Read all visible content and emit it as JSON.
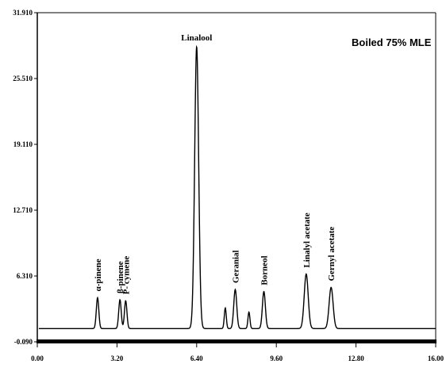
{
  "chart_data": {
    "type": "line",
    "title": "Boiled 75% MLE",
    "xlabel": "",
    "ylabel": "",
    "xlim": [
      0,
      16
    ],
    "ylim": [
      -0.09,
      31.91
    ],
    "x_ticks": [
      0,
      3.2,
      6.4,
      9.6,
      12.8,
      16
    ],
    "x_tick_labels": [
      "0.00",
      "3.20",
      "6.40",
      "9.60",
      "12.80",
      "16.00"
    ],
    "y_ticks": [
      -0.09,
      6.31,
      12.71,
      19.11,
      25.51,
      31.91
    ],
    "y_tick_labels": [
      "-0.090",
      "6.310",
      "12.710",
      "19.110",
      "25.510",
      "31.910"
    ],
    "grid": false,
    "legend": "none",
    "line_color": "#000000",
    "baseline": 1.2,
    "series": [
      {
        "peaks": [
          {
            "name": "α-pinene",
            "x": 2.42,
            "height": 3.0,
            "width": 0.05
          },
          {
            "name": "β-pinene",
            "x": 3.32,
            "height": 2.8,
            "width": 0.05
          },
          {
            "name": "P- cymene",
            "x": 3.55,
            "height": 2.7,
            "width": 0.05
          },
          {
            "name": "Linalool",
            "x": 6.4,
            "height": 27.4,
            "width": 0.08
          },
          {
            "name": "",
            "x": 7.55,
            "height": 2.0,
            "width": 0.04
          },
          {
            "name": "Geranial",
            "x": 7.95,
            "height": 3.8,
            "width": 0.06
          },
          {
            "name": "",
            "x": 8.5,
            "height": 1.6,
            "width": 0.04
          },
          {
            "name": "Borneol",
            "x": 9.1,
            "height": 3.6,
            "width": 0.06
          },
          {
            "name": "Linalyl acetate",
            "x": 10.8,
            "height": 5.3,
            "width": 0.08
          },
          {
            "name": "Gernyl acetate",
            "x": 11.8,
            "height": 4.0,
            "width": 0.08
          }
        ]
      }
    ]
  }
}
